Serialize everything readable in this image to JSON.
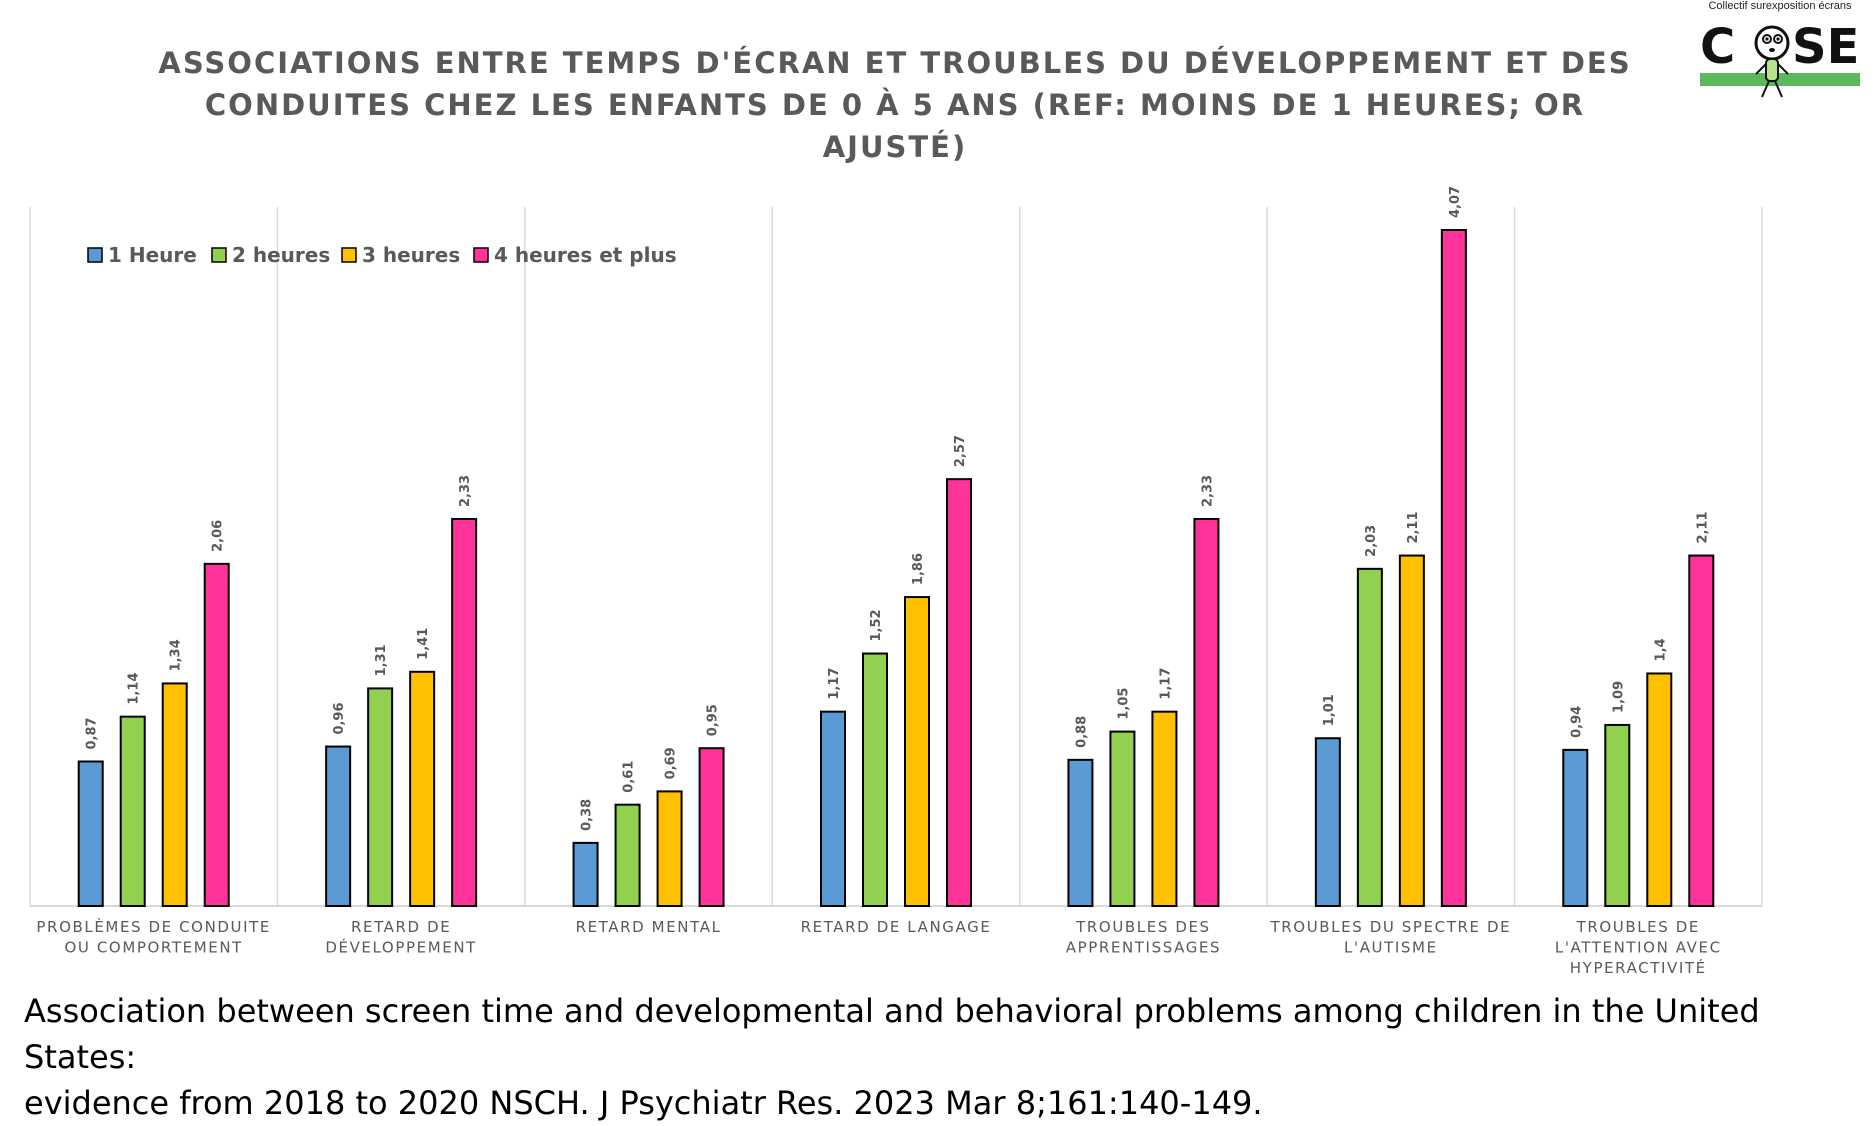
{
  "chart_data": {
    "type": "bar",
    "title": "ASSOCIATIONS ENTRE TEMPS D'ÉCRAN ET TROUBLES DU DÉVELOPPEMENT ET DES CONDUITES CHEZ LES ENFANTS DE 0 À 5 ANS (REF: MOINS DE 1 HEURES; OR AJUSTÉ)",
    "title_lines": [
      "ASSOCIATIONS ENTRE TEMPS D'ÉCRAN ET TROUBLES DU DÉVELOPPEMENT ET DES",
      "CONDUITES CHEZ LES ENFANTS DE 0 À 5 ANS (REF: MOINS DE 1 HEURES; OR AJUSTÉ)"
    ],
    "categories": [
      [
        "PROBLÈMES DE CONDUITE",
        "OU COMPORTEMENT"
      ],
      [
        "RETARD DE",
        "DÉVELOPPEMENT"
      ],
      [
        "RETARD MENTAL"
      ],
      [
        "RETARD DE LANGAGE"
      ],
      [
        "TROUBLES DES",
        "APPRENTISSAGES"
      ],
      [
        "TROUBLES DU SPECTRE DE",
        "L'AUTISME"
      ],
      [
        "TROUBLES DE",
        "L'ATTENTION AVEC",
        "HYPERACTIVITÉ"
      ]
    ],
    "series": [
      {
        "name": "1 Heure",
        "color": "#5b9bd5",
        "values": [
          0.87,
          0.96,
          0.38,
          1.17,
          0.88,
          1.01,
          0.94
        ],
        "labels": [
          "0,87",
          "0,96",
          "0,38",
          "1,17",
          "0,88",
          "1,01",
          "0,94"
        ]
      },
      {
        "name": "2 heures",
        "color": "#92d050",
        "values": [
          1.14,
          1.31,
          0.61,
          1.52,
          1.05,
          2.03,
          1.09
        ],
        "labels": [
          "1,14",
          "1,31",
          "0,61",
          "1,52",
          "1,05",
          "2,03",
          "1,09"
        ]
      },
      {
        "name": "3 heures",
        "color": "#ffc000",
        "values": [
          1.34,
          1.41,
          0.69,
          1.86,
          1.17,
          2.11,
          1.4
        ],
        "labels": [
          "1,34",
          "1,41",
          "0,69",
          "1,86",
          "1,17",
          "2,11",
          "1,4"
        ]
      },
      {
        "name": "4 heures et plus",
        "color": "#ff3399",
        "values": [
          2.06,
          2.33,
          0.95,
          2.57,
          2.33,
          4.07,
          2.11
        ],
        "labels": [
          "2,06",
          "2,33",
          "0,95",
          "2,57",
          "2,33",
          "4,07",
          "2,11"
        ]
      }
    ],
    "xlabel": "",
    "ylabel": "",
    "ylim": [
      0,
      4.5
    ],
    "grid": false,
    "legend": "top-left"
  },
  "logo": {
    "caption": "Collectif surexposition écrans",
    "text_left": "C",
    "text_right": "SE",
    "accent_color": "#5cb85c"
  },
  "reference": {
    "lines": [
      "Association between screen time and developmental and behavioral problems among children in the United States:",
      "evidence from 2018 to 2020 NSCH. J Psychiatr Res. 2023 Mar 8;161:140-149."
    ]
  }
}
